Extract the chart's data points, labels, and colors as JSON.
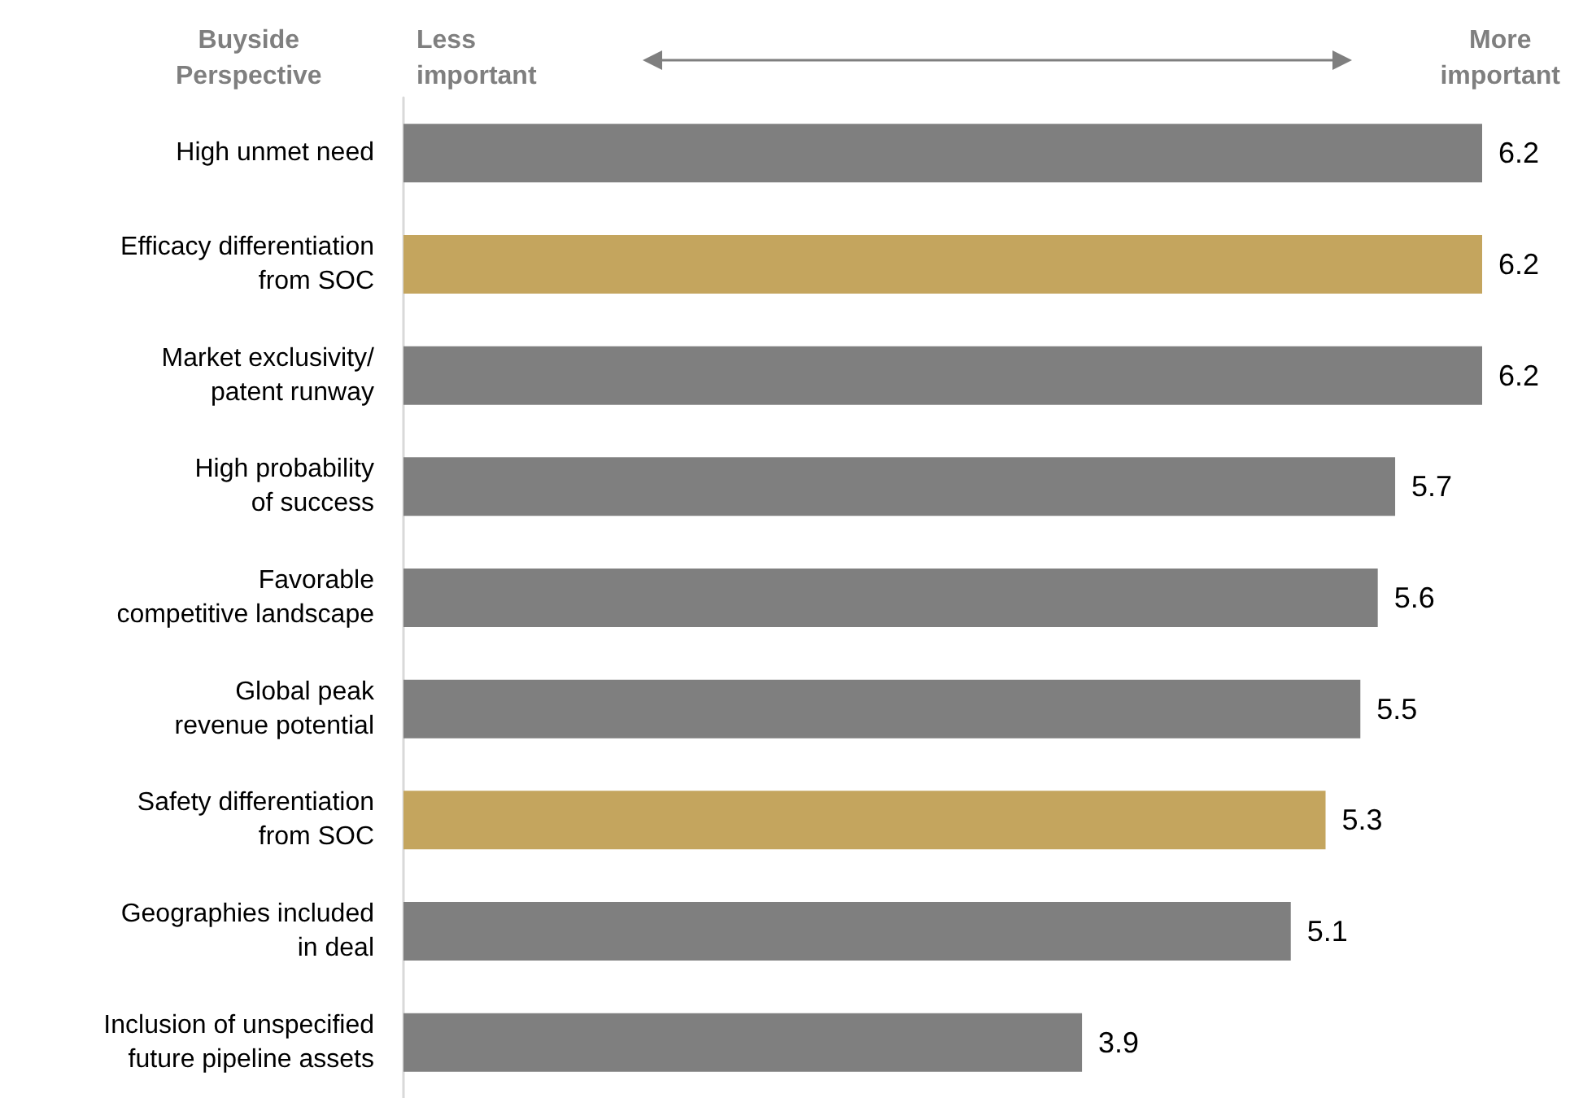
{
  "chart_data": {
    "type": "bar",
    "orientation": "horizontal",
    "ylabel": "Buyside\nPerspective",
    "categories": [
      "High unmet need",
      "Efficacy differentiation\nfrom SOC",
      "Market exclusivity/\npatent runway",
      "High probability\nof success",
      "Favorable\ncompetitive landscape",
      "Global peak\nrevenue potential",
      "Safety differentiation\nfrom SOC",
      "Geographies included\nin deal",
      "Inclusion of unspecified\nfuture pipeline assets"
    ],
    "values": [
      6.2,
      6.2,
      6.2,
      5.7,
      5.6,
      5.5,
      5.3,
      5.1,
      3.9
    ],
    "colors": [
      "#7f7f7f",
      "#c4a55e",
      "#7f7f7f",
      "#7f7f7f",
      "#7f7f7f",
      "#7f7f7f",
      "#c4a55e",
      "#7f7f7f",
      "#7f7f7f"
    ],
    "data_labels": true,
    "annotations": [
      "Less\nimportant",
      "More\nimportant"
    ]
  }
}
